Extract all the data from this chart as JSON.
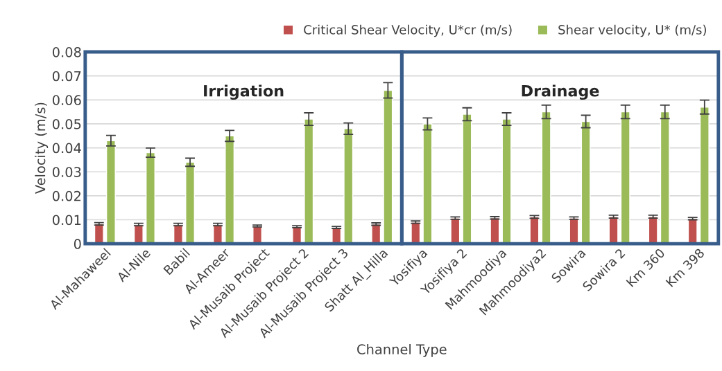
{
  "chart_data": {
    "type": "bar",
    "xlabel": "Channel Type",
    "ylabel": "Velocity (m/s)",
    "categories": [
      "Al-Mahaweel",
      "Al-Nile",
      "Babil",
      "Al-Ameer",
      "Al-Musaib Project",
      "Al-Musaib Project 2",
      "Al-Musaib Project 3",
      "Shatt Al_Hilla",
      "Yosifiya",
      "Yosifiya 2",
      "Mahmoodiya",
      "Mahmoodiya2",
      "Sowira",
      "Sowira 2",
      "Km 360",
      "Km 398"
    ],
    "series": [
      {
        "name": "Critical Shear Velocity, U*cr (m/s)",
        "color": "#c0504d",
        "values": [
          0.0083,
          0.008,
          0.008,
          0.008,
          0.0074,
          0.0071,
          0.0068,
          0.0082,
          0.009,
          0.0107,
          0.0108,
          0.0112,
          0.0107,
          0.0113,
          0.0113,
          0.0105
        ],
        "errors": [
          0.0005,
          0.0005,
          0.0005,
          0.0005,
          0.0004,
          0.0004,
          0.0004,
          0.0005,
          0.0005,
          0.0005,
          0.0005,
          0.0006,
          0.0005,
          0.0006,
          0.0006,
          0.0005
        ]
      },
      {
        "name": "Shear velocity, U* (m/s)",
        "color": "#9bbb59",
        "values": [
          0.043,
          0.038,
          0.034,
          0.045,
          null,
          0.052,
          0.048,
          0.064,
          0.05,
          0.054,
          0.052,
          0.055,
          0.051,
          0.055,
          0.055,
          0.057
        ],
        "errors": [
          0.0022,
          0.0019,
          0.0017,
          0.0023,
          null,
          0.0026,
          0.0024,
          0.0032,
          0.0025,
          0.0027,
          0.0026,
          0.0028,
          0.0026,
          0.0028,
          0.0028,
          0.0029
        ]
      }
    ],
    "ylim": [
      0,
      0.08
    ],
    "yticks": [
      {
        "value": 0,
        "label": "0"
      },
      0.01,
      0.02,
      0.03,
      0.04,
      0.05,
      0.06,
      0.07,
      0.08
    ],
    "grid": "y",
    "legend": "top right",
    "annotations": [
      "Irrigation",
      "Drainage"
    ]
  }
}
